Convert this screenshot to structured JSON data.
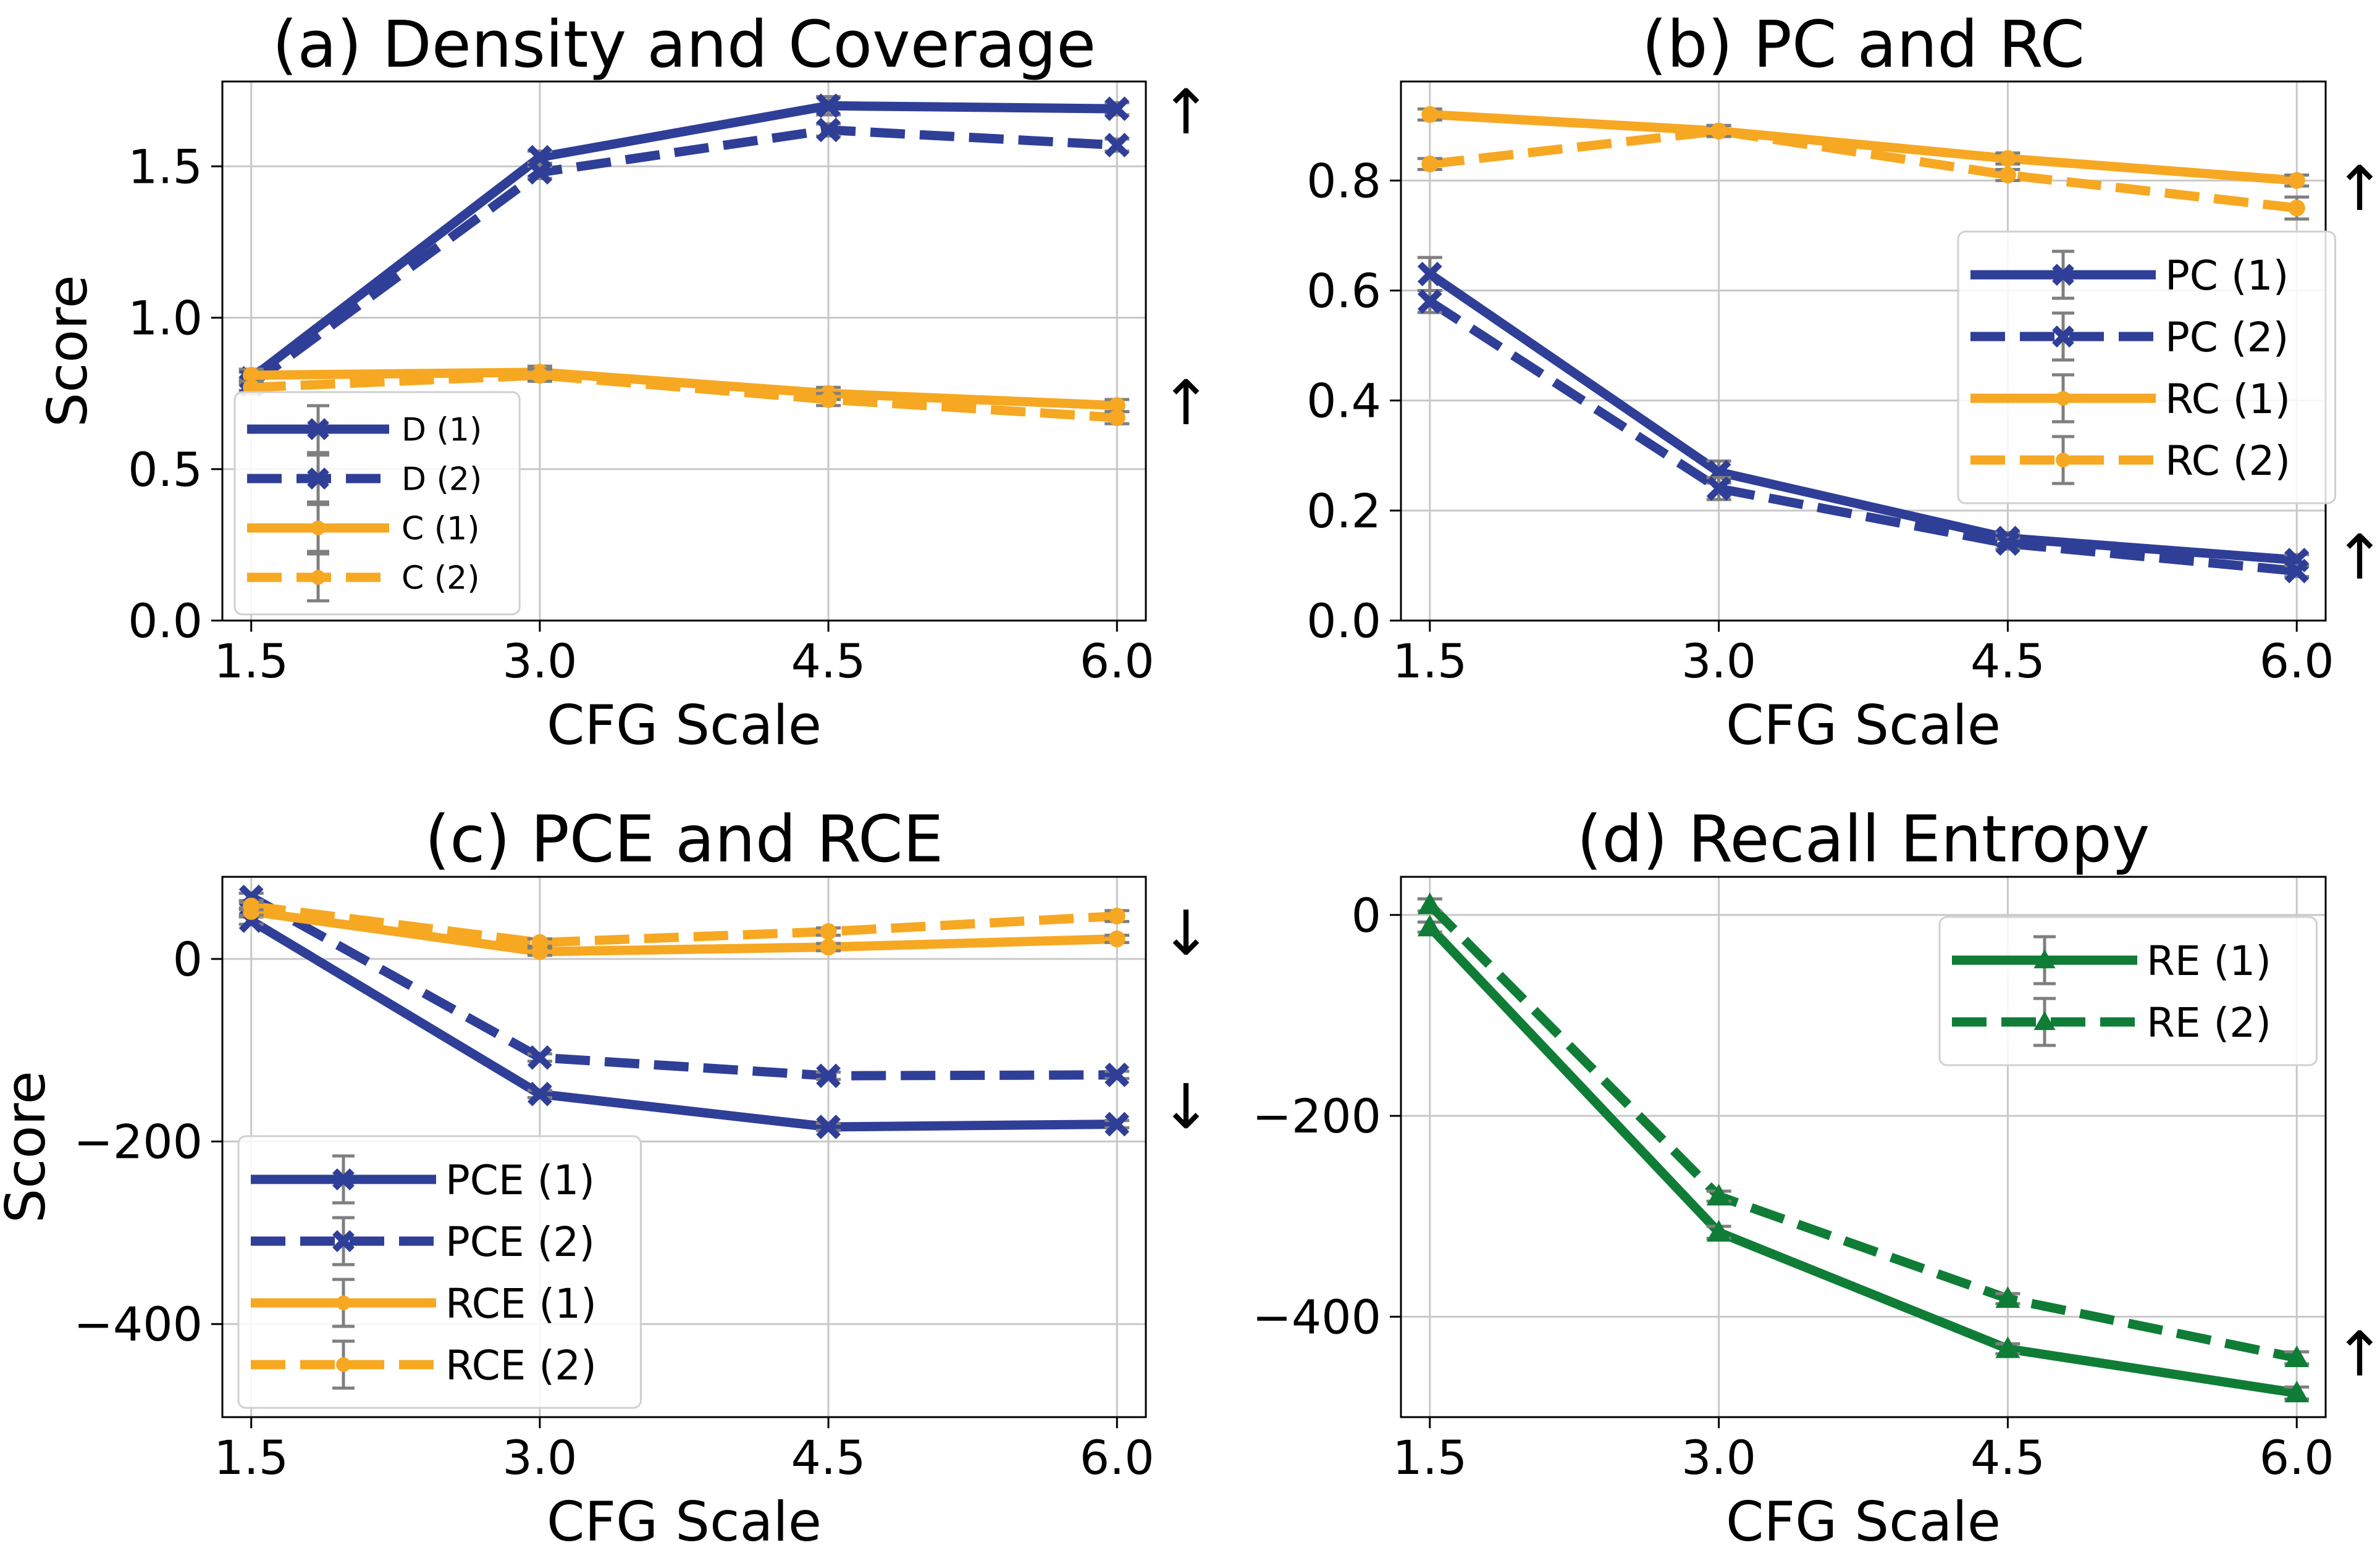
{
  "figure": {
    "shared_xlabel": "CFG Scale"
  },
  "colors": {
    "blue": "#2f3e97",
    "orange": "#f7a823",
    "green": "#0f7d36",
    "errorbar": "#7f7f7f",
    "grid": "#c8c8c8"
  },
  "chart_data": [
    {
      "type": "line",
      "title": "(a) Density and Coverage",
      "xlabel": "CFG Scale",
      "ylabel": "Score",
      "x": [
        1.5,
        3.0,
        4.5,
        6.0
      ],
      "xtick_labels": [
        "1.5",
        "3.0",
        "4.5",
        "6.0"
      ],
      "xlim": [
        1.35,
        6.15
      ],
      "ylim": [
        0.0,
        1.78
      ],
      "yticks": [
        0.0,
        0.5,
        1.0,
        1.5
      ],
      "ytick_labels": [
        "0.0",
        "0.5",
        "1.0",
        "1.5"
      ],
      "grid": true,
      "legend_position": "lower-left",
      "legend_size": "small",
      "annotations": [
        {
          "text": "↑",
          "y": 1.67
        },
        {
          "text": "↑",
          "y": 0.71
        }
      ],
      "series": [
        {
          "name": "D (1)",
          "color": "blue",
          "dash": false,
          "marker": "x",
          "values": [
            0.8,
            1.53,
            1.7,
            1.69
          ],
          "errors": [
            0.02,
            0.02,
            0.03,
            0.02
          ]
        },
        {
          "name": "D (2)",
          "color": "blue",
          "dash": true,
          "marker": "x",
          "values": [
            0.78,
            1.48,
            1.62,
            1.57
          ],
          "errors": [
            0.02,
            0.02,
            0.02,
            0.02
          ]
        },
        {
          "name": "C (1)",
          "color": "orange",
          "dash": false,
          "marker": "dot",
          "values": [
            0.81,
            0.82,
            0.75,
            0.71
          ],
          "errors": [
            0.02,
            0.02,
            0.02,
            0.02
          ]
        },
        {
          "name": "C (2)",
          "color": "orange",
          "dash": true,
          "marker": "dot",
          "values": [
            0.77,
            0.81,
            0.73,
            0.67
          ],
          "errors": [
            0.02,
            0.02,
            0.02,
            0.02
          ]
        }
      ]
    },
    {
      "type": "line",
      "title": "(b) PC and RC",
      "xlabel": "CFG Scale",
      "ylabel": "",
      "x": [
        1.5,
        3.0,
        4.5,
        6.0
      ],
      "xtick_labels": [
        "1.5",
        "3.0",
        "4.5",
        "6.0"
      ],
      "xlim": [
        1.35,
        6.15
      ],
      "ylim": [
        0.0,
        0.98
      ],
      "yticks": [
        0.0,
        0.2,
        0.4,
        0.6,
        0.8
      ],
      "ytick_labels": [
        "0.0",
        "0.2",
        "0.4",
        "0.6",
        "0.8"
      ],
      "grid": true,
      "legend_position": "center-right",
      "legend_size": "large",
      "annotations": [
        {
          "text": "↑",
          "y": 0.78
        },
        {
          "text": "↑",
          "y": 0.11
        }
      ],
      "series": [
        {
          "name": "PC (1)",
          "color": "blue",
          "dash": false,
          "marker": "x",
          "values": [
            0.63,
            0.27,
            0.15,
            0.11
          ],
          "errors": [
            0.03,
            0.02,
            0.01,
            0.01
          ]
        },
        {
          "name": "PC (2)",
          "color": "blue",
          "dash": true,
          "marker": "x",
          "values": [
            0.58,
            0.24,
            0.14,
            0.09
          ],
          "errors": [
            0.02,
            0.02,
            0.01,
            0.01
          ]
        },
        {
          "name": "RC (1)",
          "color": "orange",
          "dash": false,
          "marker": "dot",
          "values": [
            0.92,
            0.89,
            0.84,
            0.8
          ],
          "errors": [
            0.01,
            0.01,
            0.01,
            0.01
          ]
        },
        {
          "name": "RC (2)",
          "color": "orange",
          "dash": true,
          "marker": "dot",
          "values": [
            0.83,
            0.89,
            0.81,
            0.75
          ],
          "errors": [
            0.01,
            0.01,
            0.01,
            0.02
          ]
        }
      ]
    },
    {
      "type": "line",
      "title": "(c) PCE and RCE",
      "xlabel": "CFG Scale",
      "ylabel": "Score",
      "x": [
        1.5,
        3.0,
        4.5,
        6.0
      ],
      "xtick_labels": [
        "1.5",
        "3.0",
        "4.5",
        "6.0"
      ],
      "xlim": [
        1.35,
        6.15
      ],
      "ylim": [
        -502,
        90
      ],
      "yticks": [
        -400,
        -200,
        0
      ],
      "ytick_labels": [
        "−400",
        "−200",
        "0"
      ],
      "grid": true,
      "legend_position": "lower-left",
      "legend_size": "large",
      "annotations": [
        {
          "text": "↓",
          "y": 25
        },
        {
          "text": "↓",
          "y": -165
        }
      ],
      "series": [
        {
          "name": "PCE (1)",
          "color": "blue",
          "dash": false,
          "marker": "x",
          "values": [
            42,
            -148,
            -184,
            -181
          ],
          "errors": [
            4,
            4,
            4,
            4
          ]
        },
        {
          "name": "PCE (2)",
          "color": "blue",
          "dash": true,
          "marker": "x",
          "values": [
            68,
            -108,
            -128,
            -127
          ],
          "errors": [
            4,
            4,
            4,
            4
          ]
        },
        {
          "name": "RCE (1)",
          "color": "orange",
          "dash": false,
          "marker": "dot",
          "values": [
            52,
            8,
            13,
            22
          ],
          "errors": [
            4,
            4,
            4,
            4
          ]
        },
        {
          "name": "RCE (2)",
          "color": "orange",
          "dash": true,
          "marker": "dot",
          "values": [
            58,
            18,
            30,
            47
          ],
          "errors": [
            4,
            4,
            4,
            6
          ]
        }
      ]
    },
    {
      "type": "line",
      "title": "(d) Recall Entropy",
      "xlabel": "CFG Scale",
      "ylabel": "",
      "x": [
        1.5,
        3.0,
        4.5,
        6.0
      ],
      "xtick_labels": [
        "1.5",
        "3.0",
        "4.5",
        "6.0"
      ],
      "xlim": [
        1.35,
        6.15
      ],
      "ylim": [
        -500,
        38
      ],
      "yticks": [
        -400,
        -200,
        0
      ],
      "ytick_labels": [
        "−400",
        "−200",
        "0"
      ],
      "grid": true,
      "legend_position": "top-right",
      "legend_size": "large",
      "annotations": [
        {
          "text": "↑",
          "y": -440
        }
      ],
      "series": [
        {
          "name": "RE (1)",
          "color": "green",
          "dash": false,
          "marker": "triangle",
          "values": [
            -12,
            -316,
            -432,
            -476
          ],
          "errors": [
            5,
            6,
            5,
            6
          ]
        },
        {
          "name": "RE (2)",
          "color": "green",
          "dash": true,
          "marker": "triangle",
          "values": [
            10,
            -280,
            -382,
            -441
          ],
          "errors": [
            6,
            5,
            5,
            6
          ]
        }
      ]
    }
  ]
}
